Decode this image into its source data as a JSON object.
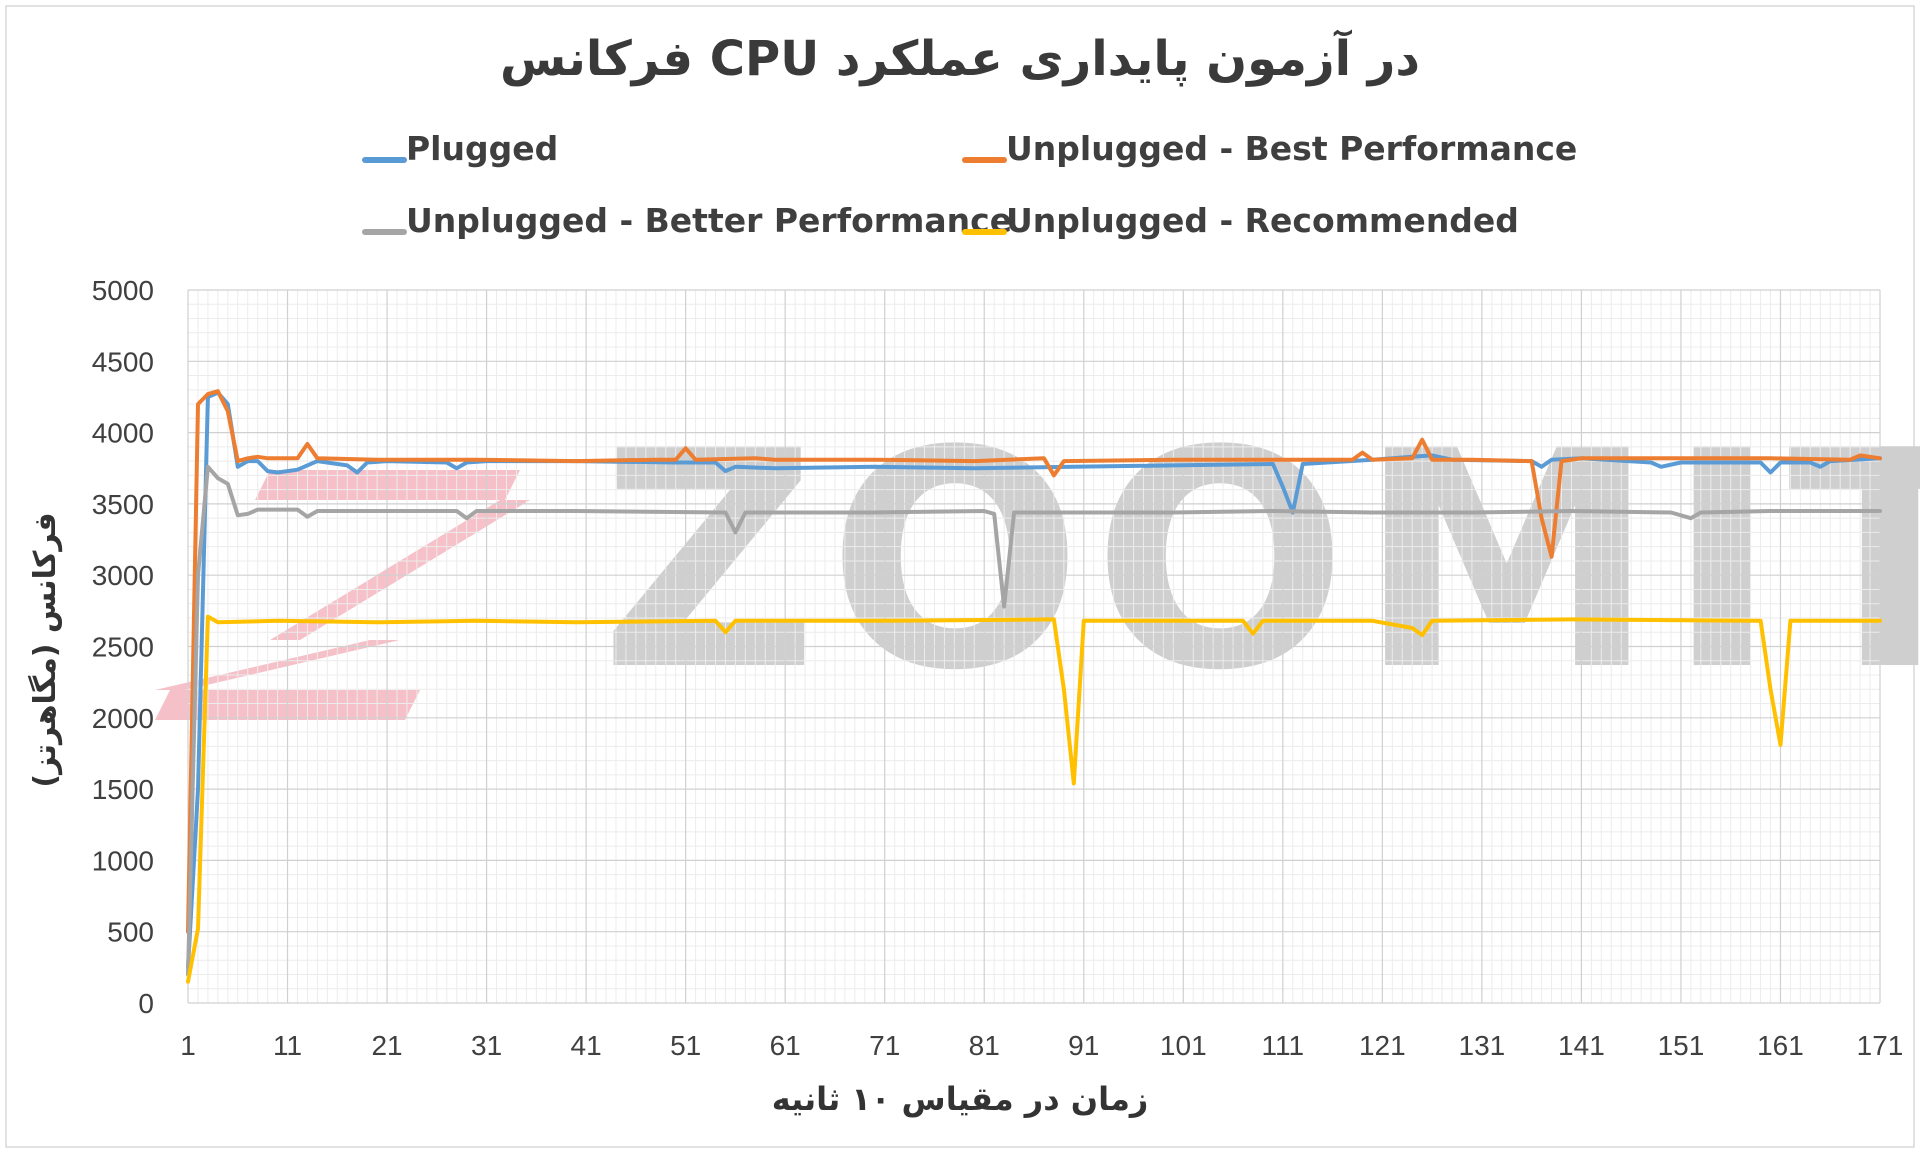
{
  "chart_data": {
    "type": "line",
    "title": "فرکانس CPU در آزمون پایداری عملکرد",
    "xlabel": "زمان در مقیاس ۱۰ ثانیه",
    "ylabel": "فرکانس (مگاهرتز)",
    "xlim": [
      1,
      171
    ],
    "ylim": [
      0,
      5000
    ],
    "y_ticks": [
      "0",
      "500",
      "1000",
      "1500",
      "2000",
      "2500",
      "3000",
      "3500",
      "4000",
      "4500",
      "5000"
    ],
    "x_ticks": [
      "1",
      "11",
      "21",
      "31",
      "41",
      "51",
      "61",
      "71",
      "81",
      "91",
      "101",
      "111",
      "121",
      "131",
      "141",
      "151",
      "161",
      "171"
    ],
    "grid": true,
    "legend_position": "top",
    "series": [
      {
        "name": "Plugged",
        "color": "#5b9bd5",
        "points": [
          [
            1,
            250
          ],
          [
            2,
            1500
          ],
          [
            3,
            4250
          ],
          [
            4,
            4280
          ],
          [
            5,
            4200
          ],
          [
            6,
            3760
          ],
          [
            7,
            3800
          ],
          [
            8,
            3800
          ],
          [
            9,
            3730
          ],
          [
            10,
            3720
          ],
          [
            12,
            3740
          ],
          [
            14,
            3800
          ],
          [
            17,
            3770
          ],
          [
            18,
            3720
          ],
          [
            19,
            3790
          ],
          [
            21,
            3800
          ],
          [
            27,
            3790
          ],
          [
            28,
            3750
          ],
          [
            29,
            3790
          ],
          [
            31,
            3800
          ],
          [
            40,
            3800
          ],
          [
            50,
            3790
          ],
          [
            54,
            3790
          ],
          [
            55,
            3730
          ],
          [
            56,
            3760
          ],
          [
            60,
            3750
          ],
          [
            70,
            3760
          ],
          [
            80,
            3750
          ],
          [
            90,
            3760
          ],
          [
            100,
            3770
          ],
          [
            110,
            3780
          ],
          [
            111,
            3620
          ],
          [
            112,
            3440
          ],
          [
            113,
            3780
          ],
          [
            120,
            3810
          ],
          [
            124,
            3830
          ],
          [
            126,
            3840
          ],
          [
            128,
            3810
          ],
          [
            136,
            3800
          ],
          [
            137,
            3760
          ],
          [
            138,
            3810
          ],
          [
            141,
            3820
          ],
          [
            148,
            3790
          ],
          [
            149,
            3760
          ],
          [
            151,
            3790
          ],
          [
            159,
            3790
          ],
          [
            160,
            3720
          ],
          [
            161,
            3790
          ],
          [
            164,
            3790
          ],
          [
            165,
            3760
          ],
          [
            166,
            3800
          ],
          [
            171,
            3820
          ]
        ]
      },
      {
        "name": "Unplugged - Best Performance",
        "color": "#ed7d31",
        "points": [
          [
            1,
            500
          ],
          [
            2,
            4200
          ],
          [
            3,
            4270
          ],
          [
            4,
            4290
          ],
          [
            5,
            4150
          ],
          [
            6,
            3800
          ],
          [
            7,
            3820
          ],
          [
            8,
            3830
          ],
          [
            9,
            3820
          ],
          [
            12,
            3820
          ],
          [
            13,
            3920
          ],
          [
            14,
            3820
          ],
          [
            20,
            3810
          ],
          [
            30,
            3810
          ],
          [
            40,
            3800
          ],
          [
            48,
            3810
          ],
          [
            50,
            3810
          ],
          [
            51,
            3890
          ],
          [
            52,
            3810
          ],
          [
            58,
            3820
          ],
          [
            60,
            3810
          ],
          [
            70,
            3810
          ],
          [
            80,
            3800
          ],
          [
            87,
            3820
          ],
          [
            88,
            3700
          ],
          [
            89,
            3800
          ],
          [
            100,
            3810
          ],
          [
            110,
            3810
          ],
          [
            118,
            3810
          ],
          [
            119,
            3860
          ],
          [
            120,
            3810
          ],
          [
            124,
            3820
          ],
          [
            125,
            3950
          ],
          [
            126,
            3810
          ],
          [
            130,
            3810
          ],
          [
            136,
            3800
          ],
          [
            137,
            3400
          ],
          [
            138,
            3130
          ],
          [
            139,
            3800
          ],
          [
            141,
            3820
          ],
          [
            150,
            3820
          ],
          [
            160,
            3820
          ],
          [
            168,
            3810
          ],
          [
            169,
            3840
          ],
          [
            171,
            3820
          ]
        ]
      },
      {
        "name": "Unplugged - Better Performance",
        "color": "#a5a5a5",
        "points": [
          [
            1,
            200
          ],
          [
            2,
            3000
          ],
          [
            3,
            3760
          ],
          [
            4,
            3680
          ],
          [
            5,
            3640
          ],
          [
            6,
            3420
          ],
          [
            7,
            3430
          ],
          [
            8,
            3460
          ],
          [
            12,
            3460
          ],
          [
            13,
            3410
          ],
          [
            14,
            3450
          ],
          [
            20,
            3450
          ],
          [
            28,
            3450
          ],
          [
            29,
            3400
          ],
          [
            30,
            3450
          ],
          [
            40,
            3450
          ],
          [
            55,
            3440
          ],
          [
            56,
            3300
          ],
          [
            57,
            3440
          ],
          [
            70,
            3440
          ],
          [
            81,
            3450
          ],
          [
            82,
            3430
          ],
          [
            83,
            2780
          ],
          [
            84,
            3440
          ],
          [
            90,
            3440
          ],
          [
            100,
            3440
          ],
          [
            110,
            3450
          ],
          [
            120,
            3440
          ],
          [
            130,
            3440
          ],
          [
            140,
            3450
          ],
          [
            150,
            3440
          ],
          [
            152,
            3400
          ],
          [
            153,
            3440
          ],
          [
            160,
            3450
          ],
          [
            171,
            3450
          ]
        ]
      },
      {
        "name": "Unplugged - Recommended",
        "color": "#ffc000",
        "points": [
          [
            1,
            150
          ],
          [
            2,
            520
          ],
          [
            3,
            2710
          ],
          [
            4,
            2670
          ],
          [
            10,
            2680
          ],
          [
            20,
            2670
          ],
          [
            30,
            2680
          ],
          [
            40,
            2670
          ],
          [
            54,
            2680
          ],
          [
            55,
            2600
          ],
          [
            56,
            2680
          ],
          [
            70,
            2680
          ],
          [
            88,
            2690
          ],
          [
            89,
            2200
          ],
          [
            90,
            1540
          ],
          [
            91,
            2680
          ],
          [
            100,
            2680
          ],
          [
            107,
            2680
          ],
          [
            108,
            2590
          ],
          [
            109,
            2680
          ],
          [
            120,
            2680
          ],
          [
            124,
            2630
          ],
          [
            125,
            2580
          ],
          [
            126,
            2680
          ],
          [
            140,
            2690
          ],
          [
            158,
            2680
          ],
          [
            159,
            2680
          ],
          [
            160,
            2200
          ],
          [
            161,
            1810
          ],
          [
            162,
            2680
          ],
          [
            171,
            2680
          ]
        ]
      }
    ]
  },
  "watermark": {
    "text": "ZOOMIT",
    "mark_color": "#f4b6bf",
    "text_color": "#cfcfcf"
  }
}
